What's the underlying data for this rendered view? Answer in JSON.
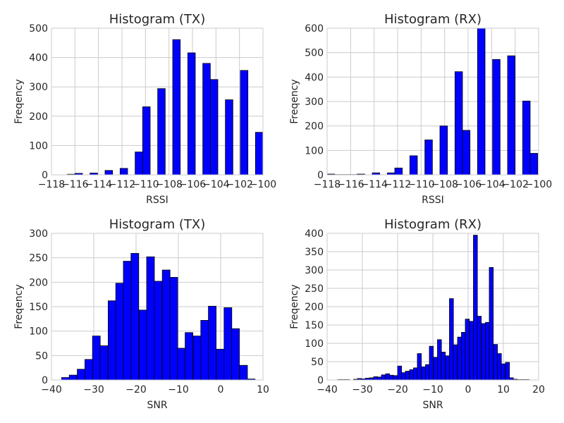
{
  "colors": {
    "bar": "#0000ff",
    "edge": "#000000",
    "grid": "#cbcbcb",
    "text": "#262626"
  },
  "chart_data": [
    {
      "type": "bar",
      "title": "Histogram (TX)",
      "xlabel": "RSSI",
      "ylabel": "Freqency",
      "xlim": [
        -118,
        -100
      ],
      "ylim": [
        0,
        500
      ],
      "xticks": [
        -118,
        -116,
        -114,
        -112,
        -110,
        -108,
        -106,
        -104,
        -102,
        -100
      ],
      "yticks": [
        0,
        100,
        200,
        300,
        400,
        500
      ],
      "grid": true,
      "bin_width": 0.64,
      "bins": [
        [
          -116.64,
          2
        ],
        [
          -116.0,
          5
        ],
        [
          -115.36,
          0
        ],
        [
          -114.72,
          6
        ],
        [
          -114.08,
          0
        ],
        [
          -113.44,
          15
        ],
        [
          -112.8,
          0
        ],
        [
          -112.16,
          22
        ],
        [
          -111.52,
          0
        ],
        [
          -110.88,
          78
        ],
        [
          -110.24,
          232
        ],
        [
          -109.6,
          0
        ],
        [
          -108.96,
          294
        ],
        [
          -108.32,
          0
        ],
        [
          -107.68,
          461
        ],
        [
          -107.04,
          0
        ],
        [
          -106.4,
          416
        ],
        [
          -105.76,
          0
        ],
        [
          -105.12,
          380
        ],
        [
          -104.48,
          325
        ],
        [
          -103.84,
          0
        ],
        [
          -103.2,
          256
        ],
        [
          -102.56,
          0
        ],
        [
          -101.92,
          356
        ],
        [
          -101.28,
          0
        ],
        [
          -100.64,
          145
        ],
        [
          -100.0,
          0
        ],
        [
          -99.36,
          2
        ]
      ]
    },
    {
      "type": "bar",
      "title": "Histogram (RX)",
      "xlabel": "RSSI",
      "ylabel": "Freqency",
      "xlim": [
        -118,
        -100
      ],
      "ylim": [
        0,
        600
      ],
      "xticks": [
        -118,
        -116,
        -114,
        -112,
        -110,
        -108,
        -106,
        -104,
        -102,
        -100
      ],
      "yticks": [
        0,
        100,
        200,
        300,
        400,
        500,
        600
      ],
      "grid": true,
      "bin_width": 0.64,
      "bins": [
        [
          -118.0,
          3
        ],
        [
          -117.36,
          1
        ],
        [
          -116.72,
          1
        ],
        [
          -116.08,
          1
        ],
        [
          -115.44,
          3
        ],
        [
          -114.8,
          0
        ],
        [
          -114.16,
          8
        ],
        [
          -113.52,
          0
        ],
        [
          -112.88,
          8
        ],
        [
          -112.24,
          28
        ],
        [
          -111.6,
          0
        ],
        [
          -110.96,
          78
        ],
        [
          -110.32,
          0
        ],
        [
          -109.68,
          143
        ],
        [
          -109.04,
          0
        ],
        [
          -108.4,
          200
        ],
        [
          -107.76,
          0
        ],
        [
          -107.12,
          422
        ],
        [
          -106.48,
          182
        ],
        [
          -105.84,
          0
        ],
        [
          -105.2,
          600
        ],
        [
          -104.56,
          0
        ],
        [
          -103.92,
          472
        ],
        [
          -103.28,
          0
        ],
        [
          -102.64,
          487
        ],
        [
          -102.0,
          0
        ],
        [
          -101.36,
          302
        ],
        [
          -100.72,
          88
        ],
        [
          -100.08,
          0
        ],
        [
          -99.44,
          17
        ]
      ]
    },
    {
      "type": "bar",
      "title": "Histogram (TX)",
      "xlabel": "SNR",
      "ylabel": "Freqency",
      "xlim": [
        -40,
        10
      ],
      "ylim": [
        0,
        300
      ],
      "xticks": [
        -40,
        -30,
        -20,
        -10,
        0,
        10
      ],
      "yticks": [
        0,
        50,
        100,
        150,
        200,
        250,
        300
      ],
      "grid": true,
      "bin_width": 1.83,
      "bins": [
        [
          -37.6,
          5
        ],
        [
          -35.8,
          10
        ],
        [
          -33.9,
          22
        ],
        [
          -32.1,
          42
        ],
        [
          -30.3,
          90
        ],
        [
          -28.5,
          70
        ],
        [
          -26.6,
          162
        ],
        [
          -24.8,
          198
        ],
        [
          -23.0,
          243
        ],
        [
          -21.2,
          259
        ],
        [
          -19.3,
          143
        ],
        [
          -17.5,
          252
        ],
        [
          -15.7,
          202
        ],
        [
          -13.8,
          225
        ],
        [
          -12.0,
          210
        ],
        [
          -10.2,
          65
        ],
        [
          -8.4,
          97
        ],
        [
          -6.5,
          90
        ],
        [
          -4.7,
          122
        ],
        [
          -2.9,
          151
        ],
        [
          -1.0,
          63
        ],
        [
          0.8,
          148
        ],
        [
          2.6,
          105
        ],
        [
          4.5,
          30
        ],
        [
          6.3,
          2
        ]
      ]
    },
    {
      "type": "bar",
      "title": "Histogram (RX)",
      "xlabel": "SNR",
      "ylabel": "Freqency",
      "xlim": [
        -40,
        20
      ],
      "ylim": [
        0,
        400
      ],
      "xticks": [
        -40,
        -30,
        -20,
        -10,
        0,
        10,
        20
      ],
      "yticks": [
        0,
        50,
        100,
        150,
        200,
        250,
        300,
        350,
        400
      ],
      "grid": true,
      "bin_width": 1.13,
      "bins": [
        [
          -37.0,
          1
        ],
        [
          -35.9,
          1
        ],
        [
          -34.8,
          1
        ],
        [
          -33.6,
          0
        ],
        [
          -32.5,
          2
        ],
        [
          -31.4,
          4
        ],
        [
          -30.2,
          3
        ],
        [
          -29.1,
          5
        ],
        [
          -28.0,
          6
        ],
        [
          -26.8,
          9
        ],
        [
          -25.7,
          8
        ],
        [
          -24.6,
          14
        ],
        [
          -23.4,
          17
        ],
        [
          -22.3,
          13
        ],
        [
          -21.2,
          12
        ],
        [
          -20.0,
          38
        ],
        [
          -18.9,
          20
        ],
        [
          -17.8,
          24
        ],
        [
          -16.6,
          28
        ],
        [
          -15.5,
          33
        ],
        [
          -14.4,
          72
        ],
        [
          -13.2,
          36
        ],
        [
          -12.1,
          42
        ],
        [
          -11.0,
          92
        ],
        [
          -9.8,
          62
        ],
        [
          -8.7,
          110
        ],
        [
          -7.6,
          76
        ],
        [
          -6.4,
          66
        ],
        [
          -5.3,
          222
        ],
        [
          -4.2,
          96
        ],
        [
          -3.0,
          117
        ],
        [
          -1.9,
          130
        ],
        [
          -0.8,
          166
        ],
        [
          0.4,
          160
        ],
        [
          1.5,
          395
        ],
        [
          2.6,
          174
        ],
        [
          3.8,
          154
        ],
        [
          4.9,
          157
        ],
        [
          6.0,
          307
        ],
        [
          7.2,
          97
        ],
        [
          8.3,
          72
        ],
        [
          9.4,
          44
        ],
        [
          10.6,
          48
        ],
        [
          11.7,
          6
        ],
        [
          12.8,
          2
        ],
        [
          14.0,
          1
        ],
        [
          15.1,
          1
        ],
        [
          16.2,
          1
        ]
      ]
    }
  ]
}
